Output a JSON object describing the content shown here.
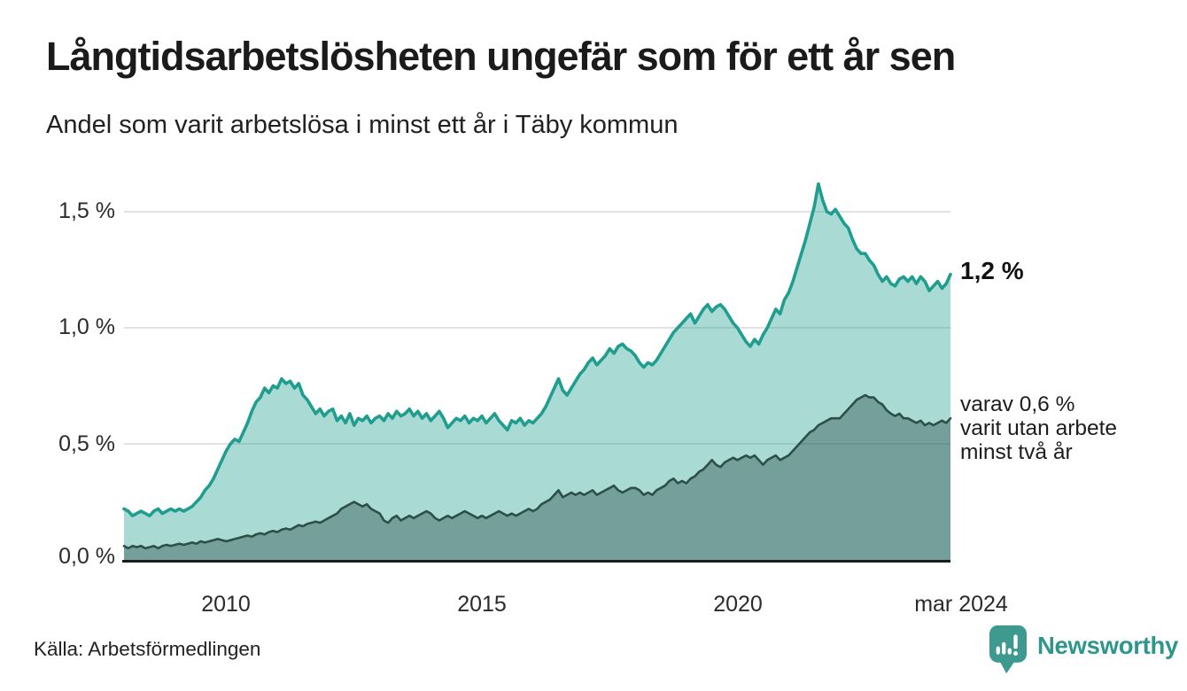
{
  "chart_data": {
    "type": "area",
    "title": "Långtidsarbetslösheten ungefär som för ett år sen",
    "subtitle": "Andel som varit arbetslösa i minst ett år i Täby kommun",
    "unit": "%",
    "frequency": "monthly",
    "x_start": "2008-01",
    "x_end": "2024-03",
    "xlabel": "",
    "ylabel": "",
    "ylim": [
      0,
      1.68
    ],
    "grid": true,
    "yticks": [
      "0,0 %",
      "0,5 %",
      "1,0 %",
      "1,5 %"
    ],
    "ytick_values": [
      0,
      0.5,
      1.0,
      1.5
    ],
    "xticks": [
      "2010",
      "2015",
      "2020",
      "mar 2024"
    ],
    "xtick_years": [
      2010,
      2015,
      2020,
      2024.17
    ],
    "annotations": {
      "end_label": "1,2 %",
      "secondary": [
        "varav 0,6 %",
        "varit utan arbete",
        "minst två år"
      ]
    },
    "series": [
      {
        "name": "Andel arbetslösa minst ett år",
        "end_value": "1,2 %",
        "color": "#1f9e8f",
        "fill": "rgba(31,158,143,0.38)",
        "values": [
          0.22,
          0.21,
          0.19,
          0.2,
          0.21,
          0.2,
          0.19,
          0.21,
          0.22,
          0.2,
          0.21,
          0.22,
          0.21,
          0.22,
          0.21,
          0.22,
          0.23,
          0.25,
          0.27,
          0.3,
          0.32,
          0.35,
          0.39,
          0.43,
          0.47,
          0.5,
          0.52,
          0.51,
          0.55,
          0.59,
          0.64,
          0.68,
          0.7,
          0.74,
          0.72,
          0.75,
          0.74,
          0.78,
          0.76,
          0.77,
          0.74,
          0.76,
          0.71,
          0.69,
          0.66,
          0.63,
          0.65,
          0.62,
          0.64,
          0.65,
          0.6,
          0.62,
          0.59,
          0.63,
          0.58,
          0.61,
          0.6,
          0.62,
          0.59,
          0.61,
          0.62,
          0.6,
          0.63,
          0.61,
          0.64,
          0.62,
          0.63,
          0.65,
          0.62,
          0.64,
          0.61,
          0.63,
          0.6,
          0.62,
          0.64,
          0.61,
          0.57,
          0.59,
          0.61,
          0.6,
          0.62,
          0.59,
          0.61,
          0.6,
          0.62,
          0.59,
          0.61,
          0.63,
          0.6,
          0.58,
          0.56,
          0.6,
          0.59,
          0.61,
          0.58,
          0.6,
          0.59,
          0.61,
          0.63,
          0.66,
          0.7,
          0.74,
          0.78,
          0.73,
          0.71,
          0.74,
          0.77,
          0.8,
          0.82,
          0.85,
          0.87,
          0.84,
          0.86,
          0.88,
          0.91,
          0.89,
          0.92,
          0.93,
          0.91,
          0.9,
          0.88,
          0.85,
          0.83,
          0.85,
          0.84,
          0.86,
          0.89,
          0.92,
          0.95,
          0.98,
          1.0,
          1.02,
          1.04,
          1.06,
          1.02,
          1.05,
          1.08,
          1.1,
          1.07,
          1.09,
          1.1,
          1.08,
          1.05,
          1.02,
          1.0,
          0.97,
          0.94,
          0.92,
          0.95,
          0.93,
          0.97,
          1.0,
          1.04,
          1.08,
          1.06,
          1.12,
          1.15,
          1.2,
          1.26,
          1.32,
          1.38,
          1.45,
          1.52,
          1.62,
          1.55,
          1.5,
          1.49,
          1.51,
          1.48,
          1.45,
          1.43,
          1.38,
          1.34,
          1.32,
          1.32,
          1.29,
          1.27,
          1.23,
          1.2,
          1.22,
          1.19,
          1.18,
          1.21,
          1.22,
          1.2,
          1.22,
          1.19,
          1.22,
          1.2,
          1.16,
          1.18,
          1.2,
          1.17,
          1.19,
          1.23
        ]
      },
      {
        "name": "varav arbetslösa minst två år",
        "end_value": "0,6 %",
        "color": "#2c4f49",
        "fill": "rgba(44,79,73,0.42)",
        "values": [
          0.06,
          0.05,
          0.06,
          0.055,
          0.06,
          0.05,
          0.055,
          0.06,
          0.05,
          0.06,
          0.065,
          0.06,
          0.065,
          0.07,
          0.065,
          0.07,
          0.075,
          0.07,
          0.08,
          0.075,
          0.08,
          0.085,
          0.09,
          0.085,
          0.08,
          0.085,
          0.09,
          0.095,
          0.1,
          0.105,
          0.1,
          0.11,
          0.115,
          0.11,
          0.12,
          0.125,
          0.12,
          0.13,
          0.135,
          0.13,
          0.14,
          0.15,
          0.145,
          0.155,
          0.16,
          0.165,
          0.16,
          0.17,
          0.18,
          0.19,
          0.2,
          0.22,
          0.23,
          0.24,
          0.25,
          0.24,
          0.23,
          0.24,
          0.22,
          0.21,
          0.2,
          0.17,
          0.16,
          0.18,
          0.19,
          0.17,
          0.18,
          0.19,
          0.18,
          0.19,
          0.2,
          0.21,
          0.2,
          0.18,
          0.17,
          0.18,
          0.19,
          0.18,
          0.19,
          0.2,
          0.21,
          0.2,
          0.19,
          0.18,
          0.19,
          0.18,
          0.19,
          0.2,
          0.21,
          0.2,
          0.19,
          0.2,
          0.19,
          0.2,
          0.21,
          0.22,
          0.21,
          0.22,
          0.24,
          0.25,
          0.26,
          0.28,
          0.3,
          0.27,
          0.28,
          0.29,
          0.28,
          0.29,
          0.28,
          0.29,
          0.3,
          0.28,
          0.29,
          0.3,
          0.31,
          0.32,
          0.3,
          0.29,
          0.3,
          0.31,
          0.31,
          0.3,
          0.28,
          0.29,
          0.28,
          0.3,
          0.31,
          0.32,
          0.34,
          0.35,
          0.33,
          0.34,
          0.33,
          0.35,
          0.36,
          0.38,
          0.39,
          0.41,
          0.43,
          0.41,
          0.4,
          0.42,
          0.43,
          0.44,
          0.43,
          0.44,
          0.45,
          0.44,
          0.45,
          0.43,
          0.41,
          0.43,
          0.44,
          0.45,
          0.43,
          0.44,
          0.45,
          0.47,
          0.49,
          0.51,
          0.53,
          0.55,
          0.56,
          0.58,
          0.59,
          0.6,
          0.61,
          0.61,
          0.61,
          0.63,
          0.65,
          0.67,
          0.69,
          0.7,
          0.71,
          0.7,
          0.7,
          0.68,
          0.67,
          0.645,
          0.63,
          0.62,
          0.63,
          0.61,
          0.61,
          0.6,
          0.59,
          0.6,
          0.58,
          0.59,
          0.58,
          0.59,
          0.6,
          0.59,
          0.61
        ]
      }
    ]
  },
  "footer": {
    "source": "Källa: Arbetsförmedlingen",
    "brand": "Newsworthy"
  }
}
